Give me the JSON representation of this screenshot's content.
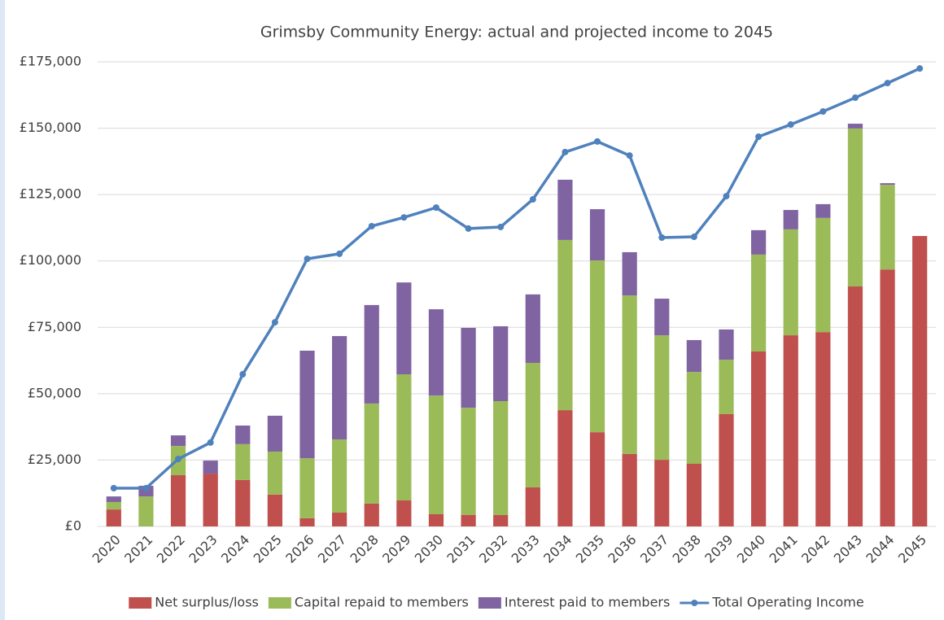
{
  "chart_data": {
    "type": "bar",
    "stacked": true,
    "title": "Grimsby Community Energy: actual and projected income to 2045",
    "categories": [
      "2020",
      "2021",
      "2022",
      "2023",
      "2024",
      "2025",
      "2026",
      "2027",
      "2028",
      "2029",
      "2030",
      "2031",
      "2032",
      "2033",
      "2034",
      "2035",
      "2036",
      "2037",
      "2038",
      "2039",
      "2040",
      "2041",
      "2042",
      "2043",
      "2044",
      "2045"
    ],
    "series": [
      {
        "name": "Net surplus/loss",
        "type": "bar",
        "color": "#c0504d",
        "values": [
          6400,
          0,
          19300,
          19900,
          17500,
          12000,
          3100,
          5200,
          8600,
          9800,
          4600,
          4300,
          4300,
          14700,
          43800,
          35500,
          27300,
          25100,
          23600,
          42300,
          65900,
          72000,
          73200,
          90400,
          96800,
          109400
        ]
      },
      {
        "name": "Capital repaid to members",
        "type": "bar",
        "color": "#9bbb59",
        "values": [
          2800,
          11300,
          11000,
          0,
          13500,
          16200,
          22600,
          27600,
          37700,
          47500,
          44700,
          40400,
          42900,
          46900,
          64100,
          64700,
          59700,
          46900,
          34600,
          20500,
          36500,
          39900,
          43000,
          59500,
          31900,
          0
        ]
      },
      {
        "name": "Interest paid to members",
        "type": "bar",
        "color": "#8064a2",
        "values": [
          2100,
          4000,
          4000,
          4900,
          7000,
          13500,
          40500,
          38900,
          37100,
          34600,
          32500,
          30100,
          28200,
          25800,
          22700,
          19300,
          16300,
          13800,
          12000,
          11400,
          9200,
          7300,
          5200,
          1800,
          600,
          0
        ]
      },
      {
        "name": "Total Operating Income",
        "type": "line",
        "color": "#4f81bd",
        "values": [
          14400,
          14400,
          25400,
          31600,
          57300,
          76900,
          100800,
          102700,
          113100,
          116400,
          120100,
          112200,
          112800,
          123200,
          141000,
          145000,
          139700,
          108800,
          109100,
          124400,
          146800,
          151400,
          156300,
          161500,
          167000,
          172500
        ]
      }
    ],
    "ylim": [
      0,
      175000
    ],
    "yticks": [
      {
        "value": 0,
        "label": "£0"
      },
      {
        "value": 25000,
        "label": "£25,000"
      },
      {
        "value": 50000,
        "label": "£50,000"
      },
      {
        "value": 75000,
        "label": "£75,000"
      },
      {
        "value": 100000,
        "label": "£100,000"
      },
      {
        "value": 125000,
        "label": "£125,000"
      },
      {
        "value": 150000,
        "label": "£150,000"
      },
      {
        "value": 175000,
        "label": "£175,000"
      }
    ],
    "grid": true,
    "legend": "bottom"
  }
}
